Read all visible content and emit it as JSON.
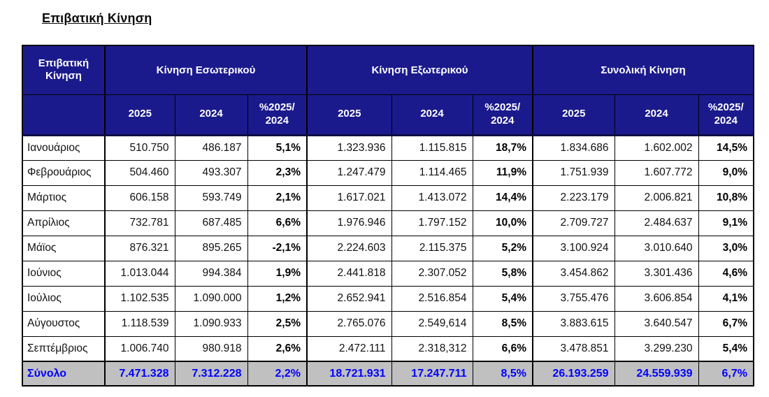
{
  "title": "Επιβατική Κίνηση",
  "table": {
    "corner_header": "Επιβατική Κίνηση",
    "group_headers": [
      "Κίνηση Εσωτερικού",
      "Κίνηση Εξωτερικού",
      "Συνολική Κίνηση"
    ],
    "sub_headers": [
      "2025",
      "2024",
      "%2025/\n2024",
      "2025",
      "2024",
      "%2025/\n2024",
      "2025",
      "2024",
      "%2025/\n2024"
    ],
    "rows": [
      {
        "month": "Ιανουάριος",
        "cells": [
          "510.750",
          "486.187",
          "5,1%",
          "1.323.936",
          "1.115.815",
          "18,7%",
          "1.834.686",
          "1.602.002",
          "14,5%"
        ]
      },
      {
        "month": "Φεβρουάριος",
        "cells": [
          "504.460",
          "493.307",
          "2,3%",
          "1.247.479",
          "1.114.465",
          "11,9%",
          "1.751.939",
          "1.607.772",
          "9,0%"
        ]
      },
      {
        "month": "Μάρτιος",
        "cells": [
          "606.158",
          "593.749",
          "2,1%",
          "1.617.021",
          "1.413.072",
          "14,4%",
          "2.223.179",
          "2.006.821",
          "10,8%"
        ]
      },
      {
        "month": "Απρίλιος",
        "cells": [
          "732.781",
          "687.485",
          "6,6%",
          "1.976.946",
          "1.797.152",
          "10,0%",
          "2.709.727",
          "2.484.637",
          "9,1%"
        ]
      },
      {
        "month": "Μάϊος",
        "cells": [
          "876.321",
          "895.265",
          "-2,1%",
          "2.224.603",
          "2.115.375",
          "5,2%",
          "3.100.924",
          "3.010.640",
          "3,0%"
        ]
      },
      {
        "month": "Ιούνιος",
        "cells": [
          "1.013.044",
          "994.384",
          "1,9%",
          "2.441.818",
          "2.307.052",
          "5,8%",
          "3.454.862",
          "3.301.436",
          "4,6%"
        ]
      },
      {
        "month": "Ιούλιος",
        "cells": [
          "1.102.535",
          "1.090.000",
          "1,2%",
          "2.652.941",
          "2.516.854",
          "5,4%",
          "3.755.476",
          "3.606.854",
          "4,1%"
        ]
      },
      {
        "month": "Αύγουστος",
        "cells": [
          "1.118.539",
          "1.090.933",
          "2,5%",
          "2.765.076",
          "2.549,614",
          "8,5%",
          "3.883.615",
          "3.640.547",
          "6,7%"
        ]
      },
      {
        "month": "Σεπτέμβριος",
        "cells": [
          "1.006.740",
          "980.918",
          "2,6%",
          "2.472.111",
          "2.318,312",
          "6,6%",
          "3.478.851",
          "3.299.230",
          "5,4%"
        ]
      }
    ],
    "total_row": {
      "month": "Σύνολο",
      "cells": [
        "7.471.328",
        "7.312.228",
        "2,2%",
        "18.721.931",
        "17.247.711",
        "8,5%",
        "26.193.259",
        "24.559.939",
        "6,7%"
      ]
    }
  },
  "colors": {
    "header_bg": "#1b1a8c",
    "header_text": "#ffffff",
    "total_bg": "#c0c0c0",
    "total_text": "#0000ff",
    "border": "#000000"
  }
}
